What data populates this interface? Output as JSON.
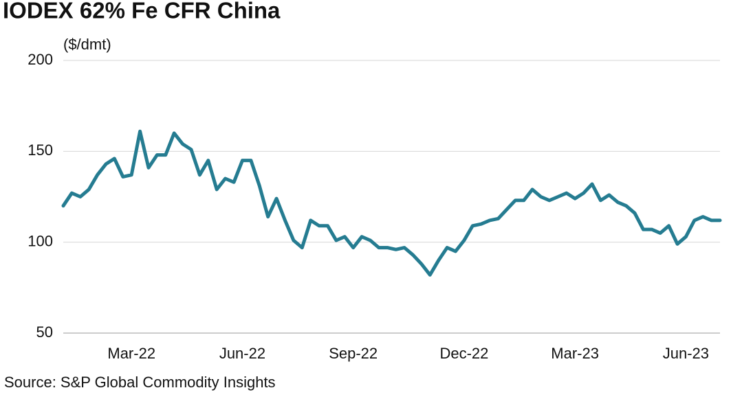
{
  "chart_data": {
    "type": "line",
    "title": "IODEX 62% Fe CFR China",
    "y_label": "($/dmt)",
    "source": "Source: S&P Global Commodity Insights",
    "categories": [
      null,
      null,
      null,
      null,
      null,
      null,
      null,
      null,
      "Mar-22",
      null,
      null,
      null,
      null,
      null,
      null,
      null,
      null,
      null,
      null,
      null,
      null,
      "Jun-22",
      null,
      null,
      null,
      null,
      null,
      null,
      null,
      null,
      null,
      null,
      null,
      null,
      "Sep-22",
      null,
      null,
      null,
      null,
      null,
      null,
      null,
      null,
      null,
      null,
      null,
      null,
      "Dec-22",
      null,
      null,
      null,
      null,
      null,
      null,
      null,
      null,
      null,
      null,
      null,
      null,
      "Mar-23",
      null,
      null,
      null,
      null,
      null,
      null,
      null,
      null,
      null,
      null,
      null,
      null,
      "Jun-23",
      null,
      null,
      null,
      null
    ],
    "values": [
      120,
      127,
      125,
      129,
      137,
      143,
      146,
      136,
      137,
      161,
      141,
      148,
      148,
      160,
      154,
      151,
      137,
      145,
      129,
      135,
      133,
      145,
      145,
      131,
      114,
      124,
      112,
      101,
      97,
      112,
      109,
      109,
      101,
      103,
      97,
      103,
      101,
      97,
      97,
      96,
      97,
      93,
      88,
      82,
      90,
      97,
      95,
      101,
      109,
      110,
      112,
      113,
      118,
      123,
      123,
      129,
      125,
      123,
      125,
      127,
      124,
      127,
      132,
      123,
      126,
      122,
      120,
      116,
      107,
      107,
      105,
      109,
      99,
      103,
      112,
      114,
      112,
      112
    ],
    "color": "#257c91",
    "ylim": [
      50,
      200
    ],
    "yticks": [
      50,
      100,
      150,
      200
    ],
    "grid": true
  }
}
